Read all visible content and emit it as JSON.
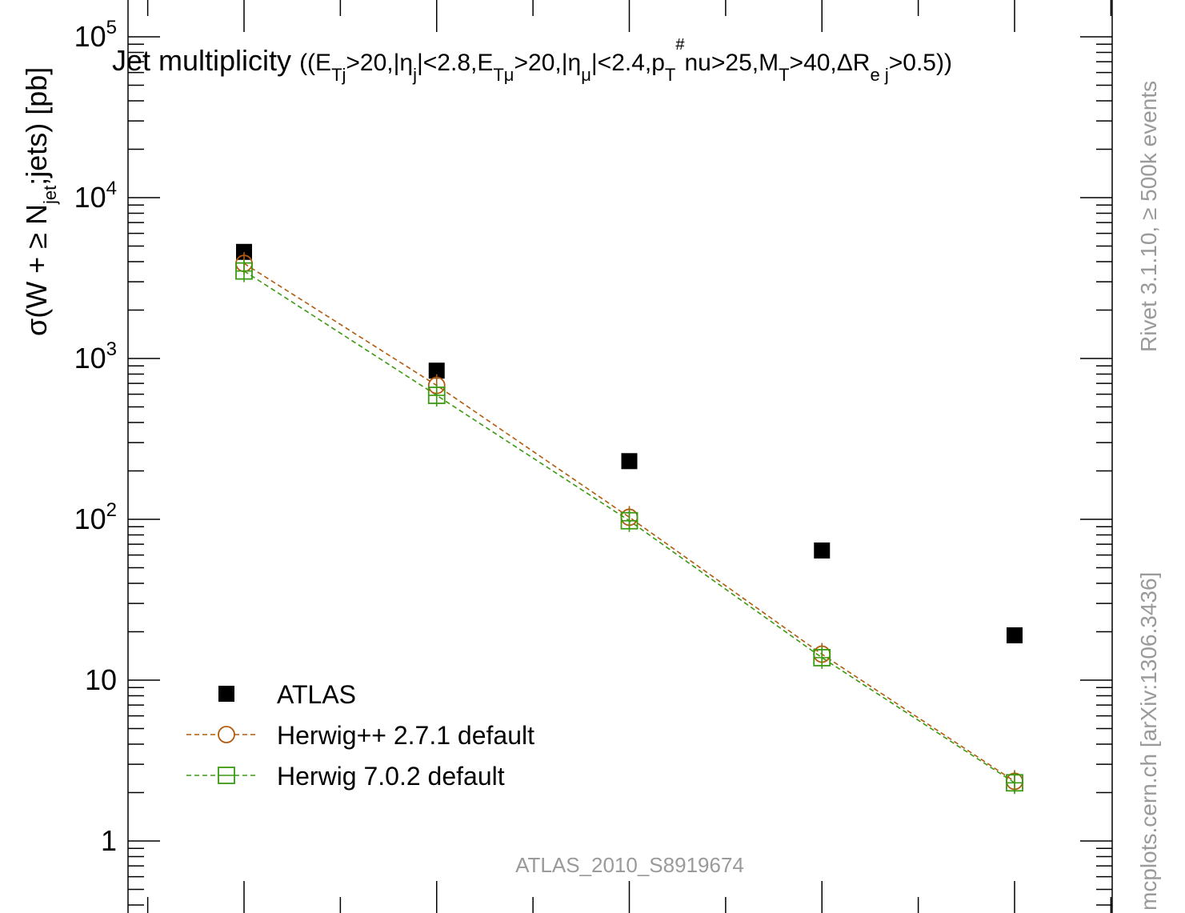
{
  "chart_data": {
    "type": "scatter",
    "title_main": "Jet multiplicity",
    "title_cuts_html": "((E<tspan baseline-shift=\"sub\" font-size=\"22\">Tj</tspan>&gt;20,|η<tspan baseline-shift=\"sub\" font-size=\"22\">j</tspan>|&lt;2.8,E<tspan baseline-shift=\"sub\" font-size=\"22\">Tμ</tspan>&gt;20,|η<tspan baseline-shift=\"sub\" font-size=\"22\">μ</tspan>|&lt;2.4,p<tspan baseline-shift=\"sub\" font-size=\"22\">T</tspan><tspan dy=\"-26\" font-size=\"20\">#</tspan><tspan dy=\"26\">nu&gt;25,M</tspan><tspan baseline-shift=\"sub\" font-size=\"22\">T</tspan>&gt;40,ΔR<tspan baseline-shift=\"sub\" font-size=\"22\">e j</tspan>&gt;0.5))",
    "ylabel": "σ(W + ≥ N_jet;jets) [pb]",
    "ylabel_main": "σ(W + ≥ N",
    "ylabel_sub": "jet",
    "ylabel_tail": ";jets) [pb]",
    "yscale": "log",
    "ylim": [
      0.5,
      150000
    ],
    "xlim": [
      -0.6,
      4.5
    ],
    "ytick_labels": [
      {
        "value": 100000,
        "base": "10",
        "exp": "5"
      },
      {
        "value": 10000,
        "base": "10",
        "exp": "4"
      },
      {
        "value": 1000,
        "base": "10",
        "exp": "3"
      },
      {
        "value": 100,
        "base": "10",
        "exp": "2"
      },
      {
        "value": 10,
        "base": "10",
        "exp": ""
      },
      {
        "value": 1,
        "base": "1",
        "exp": ""
      }
    ],
    "x": [
      0,
      1,
      2,
      3,
      4
    ],
    "series": [
      {
        "name": "ATLAS",
        "marker": "filled-square",
        "color": "#000000",
        "values": [
          4600,
          840,
          230,
          64,
          19
        ]
      },
      {
        "name": "Herwig++ 2.7.1 default",
        "marker": "open-circle",
        "line": "dashed",
        "color": "#b35a0d",
        "values": [
          3900,
          680,
          103,
          14.5,
          2.35
        ]
      },
      {
        "name": "Herwig 7.0.2 default",
        "marker": "open-square",
        "line": "dashed",
        "color": "#3a9a10",
        "values": [
          3500,
          590,
          98,
          13.8,
          2.3
        ]
      }
    ],
    "legend_position": "bottom-left",
    "annotation": "ATLAS_2010_S8919674",
    "side_text_top": "Rivet 3.1.10,  ≥ 500k events",
    "side_text_bottom": "mcplots.cern.ch [arXiv:1306.3436]"
  }
}
